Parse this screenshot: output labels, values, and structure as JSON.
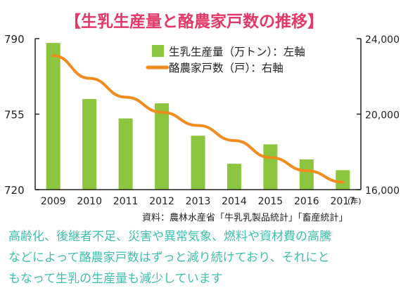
{
  "title": "【生乳生産量と酪農家戸数の推移】",
  "colors": {
    "title": "#e23a68",
    "bar": "#8cc63f",
    "line": "#f08c1e",
    "axis": "#222222",
    "caption": "#3fbfad"
  },
  "source": "資料：農林水産省「牛乳乳製品統計」「畜産統計」",
  "caption_lines": [
    "高齢化、後継者不足、災害や異常気象、燃料や資材費の高騰",
    "などによって酪農家戸数はずっと減り続けており、それにと",
    "もなって生乳の生産量も減少しています"
  ],
  "chart_data": {
    "type": "bar",
    "title": "【生乳生産量と酪農家戸数の推移】",
    "categories": [
      "2009",
      "2010",
      "2011",
      "2012",
      "2013",
      "2014",
      "2015",
      "2016",
      "2017"
    ],
    "x_unit": "(年)",
    "series": [
      {
        "name": "生乳生産量（万トン）：左軸",
        "type": "bar",
        "axis": "left",
        "values": [
          788,
          762,
          753,
          760,
          745,
          732,
          741,
          734,
          729
        ]
      },
      {
        "name": "酪農家戸数（戸）：右軸",
        "type": "line",
        "axis": "right",
        "values": [
          23100,
          21900,
          20900,
          20100,
          19400,
          18600,
          17700,
          17000,
          16400
        ]
      }
    ],
    "y_left": {
      "min": 720,
      "max": 790,
      "ticks": [
        "720",
        "755",
        "790"
      ]
    },
    "y_right": {
      "min": 16000,
      "max": 24000,
      "ticks": [
        "16,000",
        "20,000",
        "24,000"
      ]
    },
    "legend_position": "top-right",
    "grid": false
  }
}
